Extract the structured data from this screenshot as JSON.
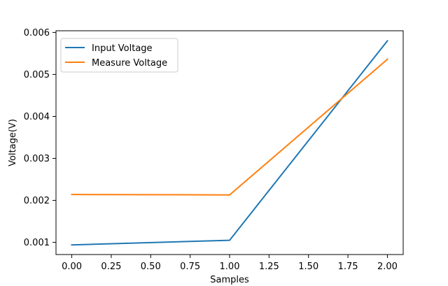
{
  "chart_data": {
    "type": "line",
    "xlabel": "Samples",
    "ylabel": "Voltage(V)",
    "xlim": [
      -0.1,
      2.1
    ],
    "ylim": [
      0.00071,
      0.00604
    ],
    "x_ticks": [
      0.0,
      0.25,
      0.5,
      0.75,
      1.0,
      1.25,
      1.5,
      1.75,
      2.0
    ],
    "x_tick_labels": [
      "0.00",
      "0.25",
      "0.50",
      "0.75",
      "1.00",
      "1.25",
      "1.50",
      "1.75",
      "2.00"
    ],
    "y_ticks": [
      0.001,
      0.002,
      0.003,
      0.004,
      0.005,
      0.006
    ],
    "y_tick_labels": [
      "0.001",
      "0.002",
      "0.003",
      "0.004",
      "0.005",
      "0.006"
    ],
    "x": [
      0,
      1,
      2
    ],
    "series": [
      {
        "name": "Input Voltage",
        "color": "#1f77b4",
        "values": [
          0.00094,
          0.00105,
          0.0058
        ]
      },
      {
        "name": "Measure Voltage",
        "color": "#ff7f0e",
        "values": [
          0.00214,
          0.00213,
          0.00536
        ]
      }
    ],
    "legend_position": "upper-left",
    "grid": false
  }
}
